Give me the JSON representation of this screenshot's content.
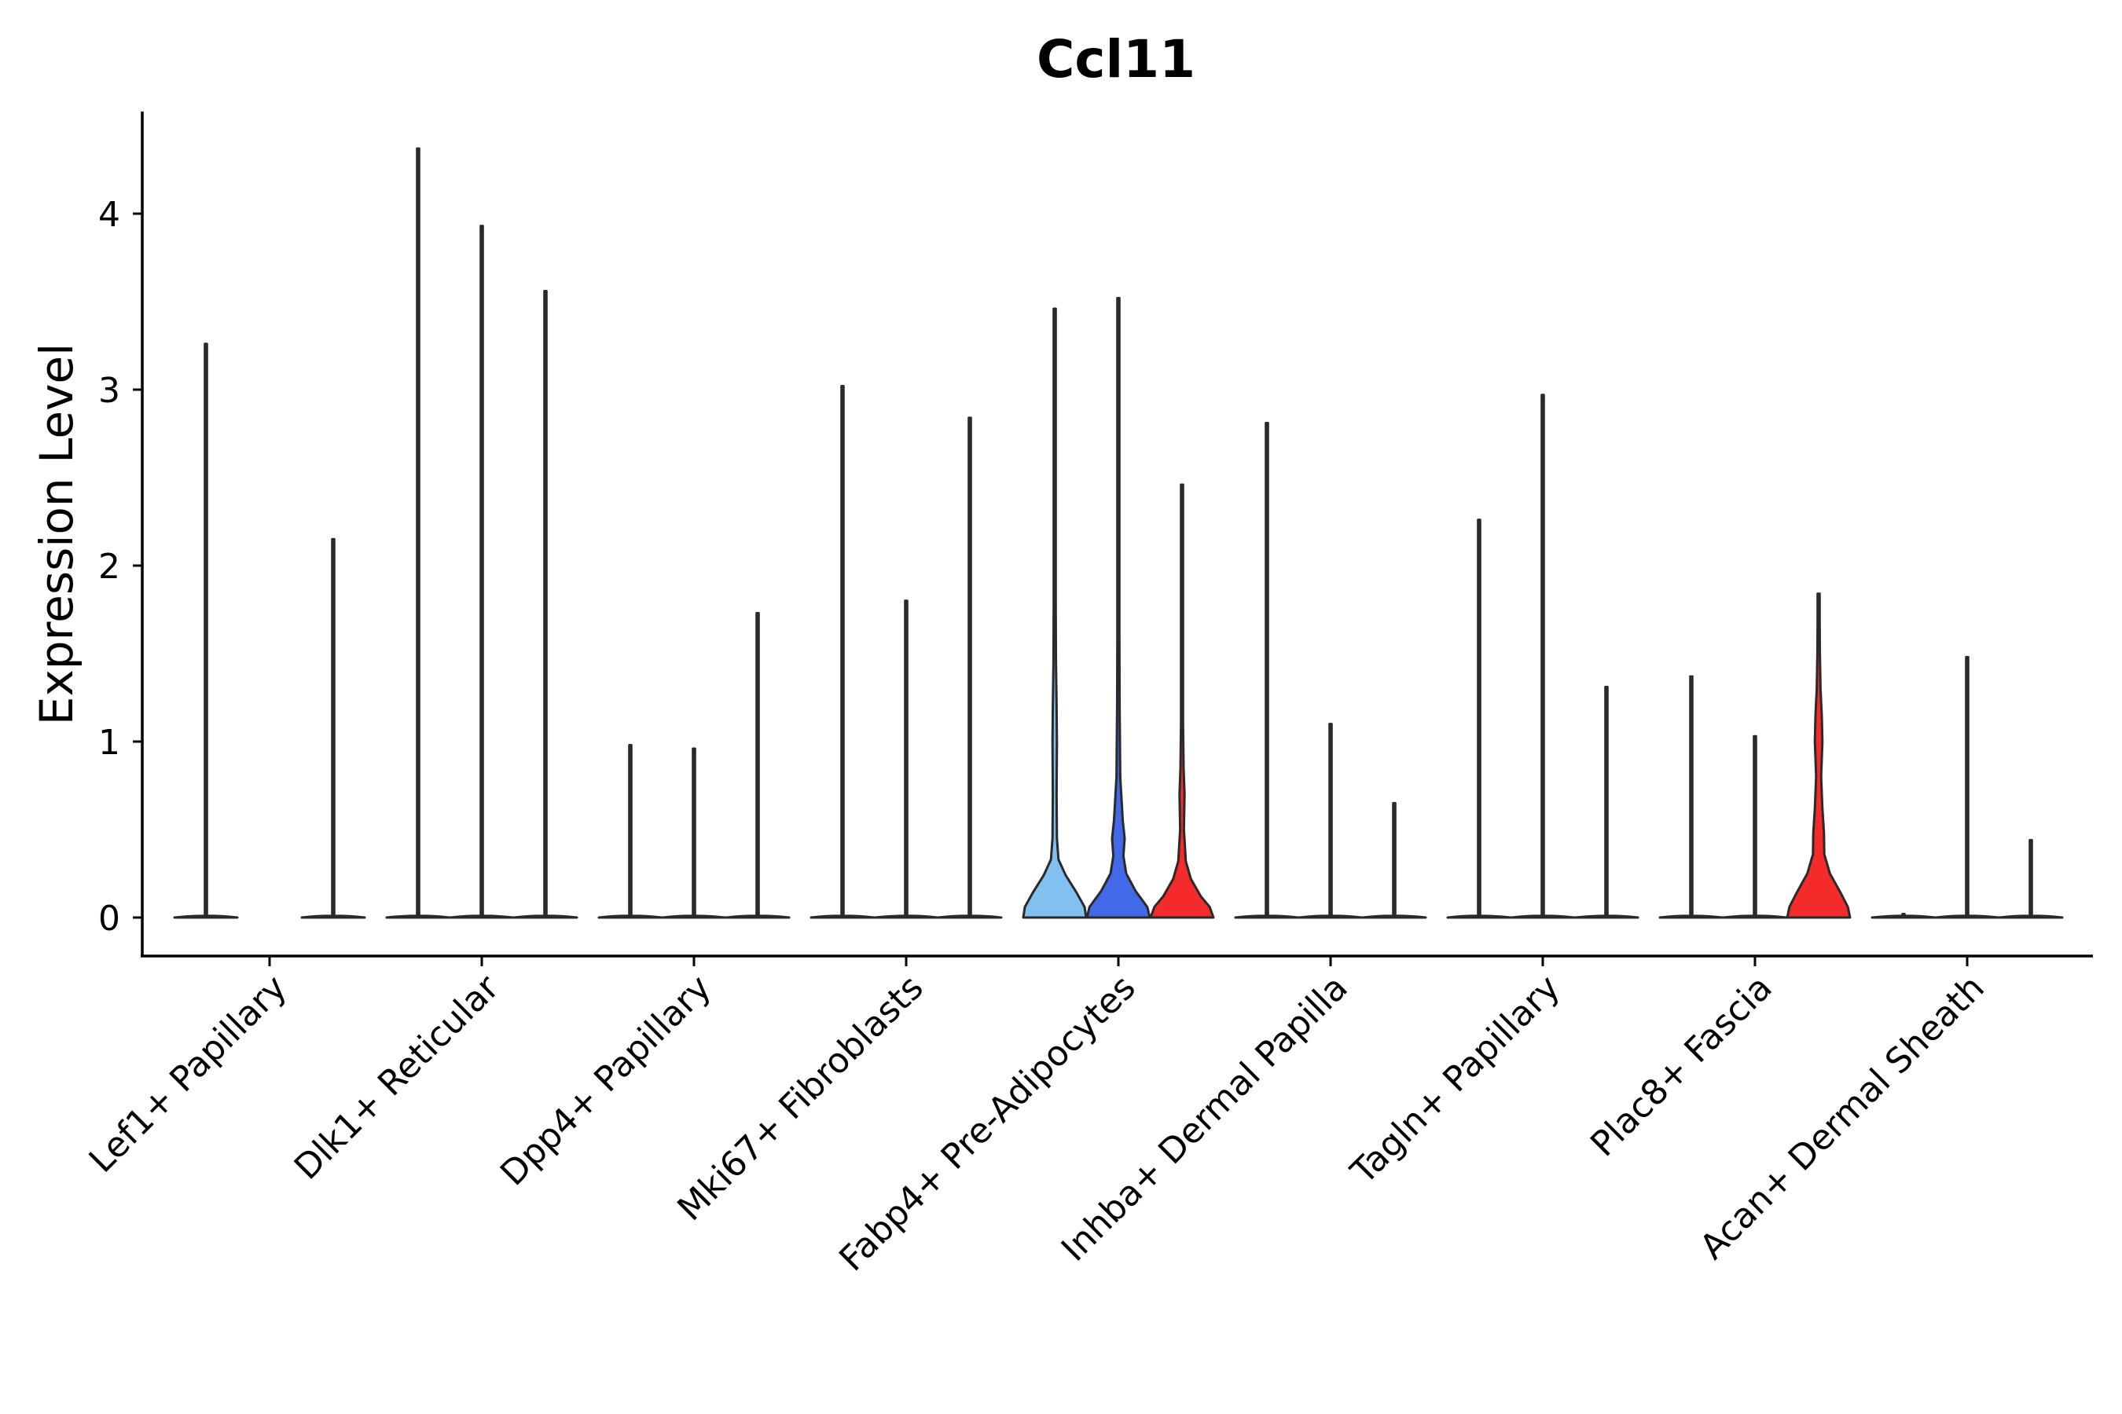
{
  "chart_data": {
    "type": "violin",
    "title": "Ccl11",
    "xlabel": "",
    "ylabel": "Expression Level",
    "ylim": [
      -0.22,
      4.6
    ],
    "yticks": [
      0,
      1,
      2,
      3,
      4
    ],
    "categories": [
      "Lef1+ Papillary",
      "Dlk1+ Reticular",
      "Dpp4+ Papillary",
      "Mki67+ Fibroblasts",
      "Fabp4+ Pre-Adipocytes",
      "Inhba+ Dermal Papilla",
      "Tagln+ Papillary",
      "Plac8+ Fascia",
      "Acan+ Dermal Sheath"
    ],
    "violins": [
      {
        "category": "Lef1+ Papillary",
        "group": 1,
        "max": 3.26,
        "color": "#ffffff",
        "shape": "flat"
      },
      {
        "category": "Lef1+ Papillary",
        "group": 3,
        "max": 2.15,
        "color": "#ffffff",
        "shape": "flat"
      },
      {
        "category": "Dlk1+ Reticular",
        "group": 1,
        "max": 4.37,
        "color": "#ffffff",
        "shape": "flat"
      },
      {
        "category": "Dlk1+ Reticular",
        "group": 2,
        "max": 3.93,
        "color": "#ffffff",
        "shape": "flat"
      },
      {
        "category": "Dlk1+ Reticular",
        "group": 3,
        "max": 3.56,
        "color": "#ffffff",
        "shape": "flat"
      },
      {
        "category": "Dpp4+ Papillary",
        "group": 1,
        "max": 0.98,
        "color": "#ffffff",
        "shape": "flat"
      },
      {
        "category": "Dpp4+ Papillary",
        "group": 2,
        "max": 0.96,
        "color": "#ffffff",
        "shape": "flat"
      },
      {
        "category": "Dpp4+ Papillary",
        "group": 3,
        "max": 1.73,
        "color": "#ffffff",
        "shape": "flat"
      },
      {
        "category": "Mki67+ Fibroblasts",
        "group": 1,
        "max": 3.02,
        "color": "#ffffff",
        "shape": "flat"
      },
      {
        "category": "Mki67+ Fibroblasts",
        "group": 2,
        "max": 1.8,
        "color": "#ffffff",
        "shape": "flat"
      },
      {
        "category": "Mki67+ Fibroblasts",
        "group": 3,
        "max": 2.84,
        "color": "#ffffff",
        "shape": "flat"
      },
      {
        "category": "Fabp4+ Pre-Adipocytes",
        "group": 1,
        "max": 3.46,
        "color": "#82c1ef",
        "shape": "fabp4-1"
      },
      {
        "category": "Fabp4+ Pre-Adipocytes",
        "group": 2,
        "max": 3.52,
        "color": "#4169e8",
        "shape": "fabp4-2"
      },
      {
        "category": "Fabp4+ Pre-Adipocytes",
        "group": 3,
        "max": 2.46,
        "color": "#f52a2a",
        "shape": "fabp4-3"
      },
      {
        "category": "Inhba+ Dermal Papilla",
        "group": 1,
        "max": 2.81,
        "color": "#ffffff",
        "shape": "flat"
      },
      {
        "category": "Inhba+ Dermal Papilla",
        "group": 2,
        "max": 1.1,
        "color": "#ffffff",
        "shape": "flat"
      },
      {
        "category": "Inhba+ Dermal Papilla",
        "group": 3,
        "max": 0.65,
        "color": "#ffffff",
        "shape": "flat"
      },
      {
        "category": "Tagln+ Papillary",
        "group": 1,
        "max": 2.26,
        "color": "#ffffff",
        "shape": "flat"
      },
      {
        "category": "Tagln+ Papillary",
        "group": 2,
        "max": 2.97,
        "color": "#ffffff",
        "shape": "flat"
      },
      {
        "category": "Tagln+ Papillary",
        "group": 3,
        "max": 1.31,
        "color": "#ffffff",
        "shape": "flat"
      },
      {
        "category": "Plac8+ Fascia",
        "group": 1,
        "max": 1.37,
        "color": "#ffffff",
        "shape": "flat"
      },
      {
        "category": "Plac8+ Fascia",
        "group": 2,
        "max": 1.03,
        "color": "#ffffff",
        "shape": "flat"
      },
      {
        "category": "Plac8+ Fascia",
        "group": 3,
        "max": 1.84,
        "color": "#f52a2a",
        "shape": "plac8-3"
      },
      {
        "category": "Acan+ Dermal Sheath",
        "group": 1,
        "max": 0.02,
        "color": "#ffffff",
        "shape": "flat"
      },
      {
        "category": "Acan+ Dermal Sheath",
        "group": 2,
        "max": 1.48,
        "color": "#ffffff",
        "shape": "flat"
      },
      {
        "category": "Acan+ Dermal Sheath",
        "group": 3,
        "max": 0.44,
        "color": "#ffffff",
        "shape": "flat"
      }
    ]
  }
}
